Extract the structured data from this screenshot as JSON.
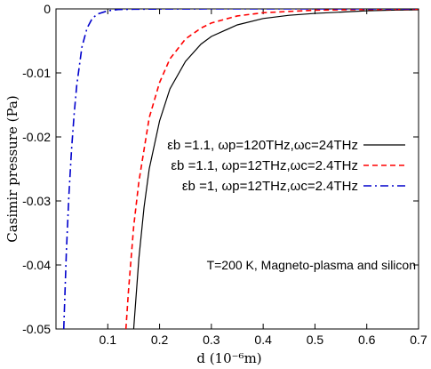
{
  "chart_data": {
    "type": "line",
    "title": "",
    "xlabel": "d (10⁻⁶m)",
    "ylabel": "Casimir pressure (Pa)",
    "xlim": [
      0,
      0.7
    ],
    "ylim": [
      -0.05,
      0
    ],
    "x_ticks": [
      {
        "v": 0.1,
        "label": "0.1"
      },
      {
        "v": 0.2,
        "label": "0.2"
      },
      {
        "v": 0.3,
        "label": "0.3"
      },
      {
        "v": 0.4,
        "label": "0.4"
      },
      {
        "v": 0.5,
        "label": "0.5"
      },
      {
        "v": 0.6,
        "label": "0.6"
      },
      {
        "v": 0.7,
        "label": "0.7"
      }
    ],
    "y_ticks": [
      {
        "v": 0,
        "label": "0"
      },
      {
        "v": -0.01,
        "label": "-0.01"
      },
      {
        "v": -0.02,
        "label": "-0.02"
      },
      {
        "v": -0.03,
        "label": "-0.03"
      },
      {
        "v": -0.04,
        "label": "-0.04"
      },
      {
        "v": -0.05,
        "label": "-0.05"
      }
    ],
    "grid": false,
    "legend_position": "center-right",
    "annotation": "T=200 K, Magneto-plasma and silicon",
    "series": [
      {
        "name": "εb =1.1, ωp=120THz,ωc=24THz",
        "color": "#000000",
        "dash": "solid",
        "x": [
          0.15,
          0.16,
          0.17,
          0.18,
          0.2,
          0.22,
          0.25,
          0.28,
          0.3,
          0.35,
          0.4,
          0.45,
          0.5,
          0.55,
          0.6,
          0.65,
          0.7
        ],
        "y": [
          -0.05,
          -0.039,
          -0.031,
          -0.025,
          -0.0175,
          -0.0125,
          -0.0082,
          -0.0055,
          -0.0043,
          -0.0025,
          -0.0015,
          -0.001,
          -0.0007,
          -0.0005,
          -0.0003,
          -0.0002,
          -0.00015
        ]
      },
      {
        "name": "εb =1.1, ωp=12THz,ωc=2.4THz",
        "color": "#ff0000",
        "dash": "dashed",
        "x": [
          0.135,
          0.14,
          0.15,
          0.16,
          0.18,
          0.2,
          0.22,
          0.25,
          0.28,
          0.3,
          0.35,
          0.4,
          0.5,
          0.6,
          0.7
        ],
        "y": [
          -0.05,
          -0.044,
          -0.034,
          -0.027,
          -0.017,
          -0.0115,
          -0.0078,
          -0.0047,
          -0.003,
          -0.0022,
          -0.0011,
          -0.0006,
          -0.0002,
          -0.0001,
          -5e-05
        ]
      },
      {
        "name": "εb =1, ωp=12THz,ωc=2.4THz",
        "color": "#0000cc",
        "dash": "dashdot",
        "x": [
          0.015,
          0.02,
          0.025,
          0.03,
          0.035,
          0.04,
          0.05,
          0.06,
          0.07,
          0.08,
          0.1,
          0.12,
          0.15,
          0.2,
          0.3,
          0.5,
          0.7
        ],
        "y": [
          -0.05,
          -0.038,
          -0.029,
          -0.022,
          -0.0165,
          -0.012,
          -0.006,
          -0.003,
          -0.0015,
          -0.0008,
          -0.0003,
          -0.0001,
          -5e-05,
          -2e-05,
          0,
          0,
          0
        ]
      }
    ]
  }
}
